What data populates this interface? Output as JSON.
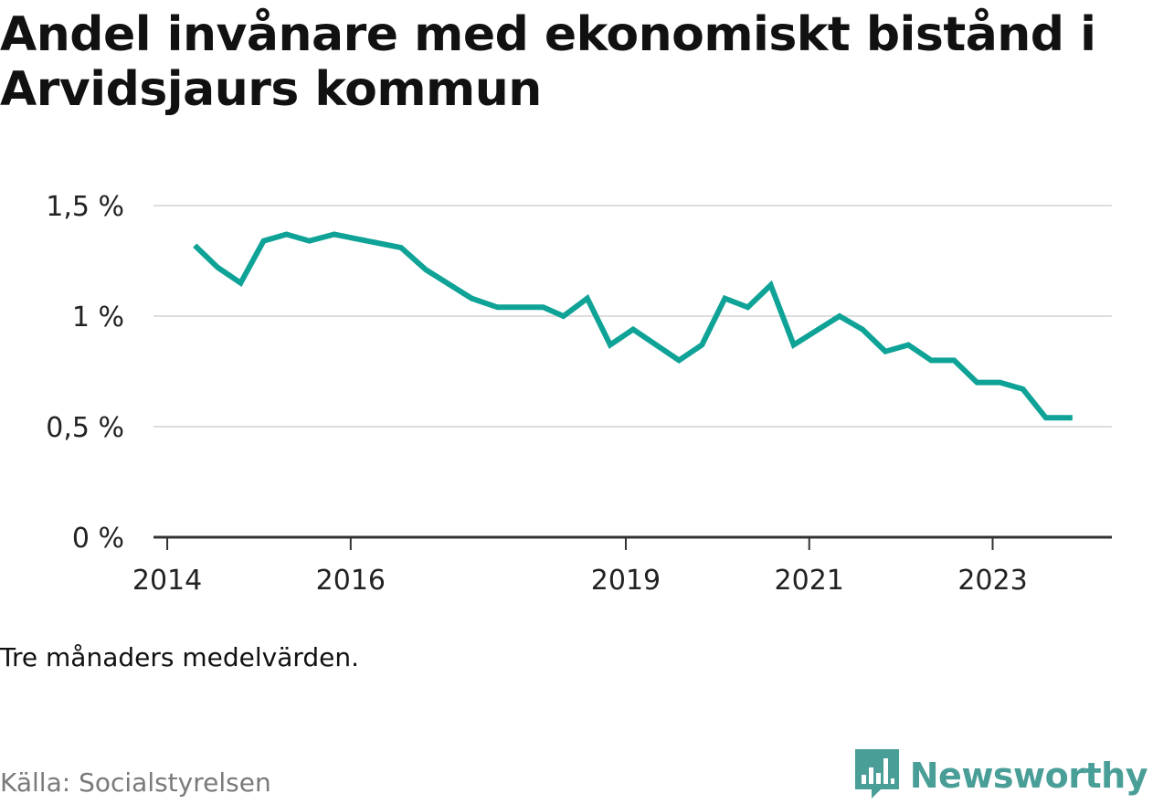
{
  "header": {
    "title": "Andel invånare med ekonomiskt bistånd i Arvidsjaurs kommun"
  },
  "footer": {
    "note": "Tre månaders medelvärden.",
    "source": "Källa: Socialstyrelsen",
    "brand": "Newsworthy"
  },
  "colors": {
    "line": "#0fa397",
    "grid": "#dddddd",
    "axis": "#333333",
    "brand": "#4a9e98"
  },
  "icons": {
    "brand_logo": "newsworthy-bar-chart-speech-bubble-icon"
  },
  "chart_data": {
    "type": "line",
    "title": "Andel invånare med ekonomiskt bistånd i Arvidsjaurs kommun",
    "xlabel": "",
    "ylabel": "",
    "ylim": [
      0,
      1.5
    ],
    "y_ticks": [
      {
        "value": 0,
        "label": "0 %"
      },
      {
        "value": 0.5,
        "label": "0,5 %"
      },
      {
        "value": 1,
        "label": "1 %"
      },
      {
        "value": 1.5,
        "label": "1,5 %"
      }
    ],
    "x_ticks": [
      {
        "value": 2014.0,
        "label": "2014"
      },
      {
        "value": 2016.0,
        "label": "2016"
      },
      {
        "value": 2019.0,
        "label": "2019"
      },
      {
        "value": 2021.0,
        "label": "2021"
      },
      {
        "value": 2023.0,
        "label": "2023"
      }
    ],
    "xlim": [
      2013.85,
      2024.3
    ],
    "grid": true,
    "series": [
      {
        "values": [
          {
            "x": 2014.3,
            "y": 1.32
          },
          {
            "x": 2014.55,
            "y": 1.22
          },
          {
            "x": 2014.8,
            "y": 1.15
          },
          {
            "x": 2015.05,
            "y": 1.34
          },
          {
            "x": 2015.3,
            "y": 1.37
          },
          {
            "x": 2015.55,
            "y": 1.34
          },
          {
            "x": 2015.82,
            "y": 1.37
          },
          {
            "x": 2016.55,
            "y": 1.31
          },
          {
            "x": 2016.82,
            "y": 1.21
          },
          {
            "x": 2017.32,
            "y": 1.08
          },
          {
            "x": 2017.6,
            "y": 1.04
          },
          {
            "x": 2018.1,
            "y": 1.04
          },
          {
            "x": 2018.32,
            "y": 1.0
          },
          {
            "x": 2018.58,
            "y": 1.08
          },
          {
            "x": 2018.83,
            "y": 0.87
          },
          {
            "x": 2019.08,
            "y": 0.94
          },
          {
            "x": 2019.58,
            "y": 0.8
          },
          {
            "x": 2019.83,
            "y": 0.87
          },
          {
            "x": 2020.08,
            "y": 1.08
          },
          {
            "x": 2020.33,
            "y": 1.04
          },
          {
            "x": 2020.58,
            "y": 1.14
          },
          {
            "x": 2020.83,
            "y": 0.87
          },
          {
            "x": 2021.33,
            "y": 1.0
          },
          {
            "x": 2021.58,
            "y": 0.94
          },
          {
            "x": 2021.83,
            "y": 0.84
          },
          {
            "x": 2022.08,
            "y": 0.87
          },
          {
            "x": 2022.33,
            "y": 0.8
          },
          {
            "x": 2022.58,
            "y": 0.8
          },
          {
            "x": 2022.83,
            "y": 0.7
          },
          {
            "x": 2023.08,
            "y": 0.7
          },
          {
            "x": 2023.33,
            "y": 0.67
          },
          {
            "x": 2023.58,
            "y": 0.54
          },
          {
            "x": 2023.87,
            "y": 0.54
          }
        ]
      }
    ]
  }
}
